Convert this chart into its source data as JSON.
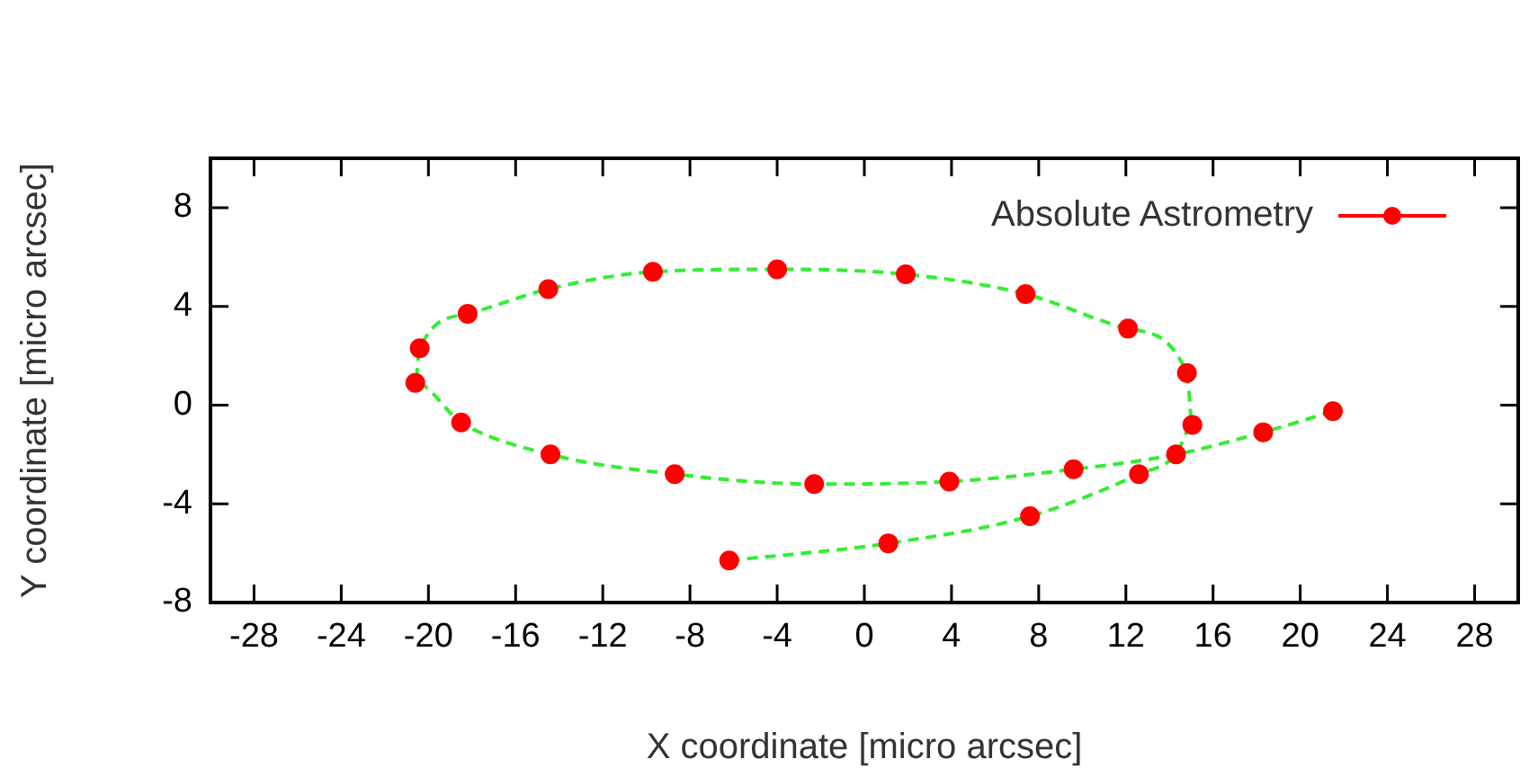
{
  "chart_data": {
    "type": "scatter",
    "xlabel": "X coordinate [micro arcsec]",
    "ylabel": "Y coordinate [micro arcsec]",
    "xlim": [
      -30,
      30
    ],
    "xticks": [
      -28,
      -24,
      -20,
      -16,
      -12,
      -8,
      -4,
      0,
      4,
      8,
      12,
      16,
      20,
      24,
      28
    ],
    "ylim": [
      -8,
      10
    ],
    "yticks": [
      -8,
      -4,
      0,
      4,
      8
    ],
    "grid": false,
    "legend": "top right",
    "series": [
      {
        "type": "line",
        "color": "#33ee33",
        "line_style": "dashed",
        "marker": "none",
        "x": [
          -6.2,
          1.1,
          7.6,
          12.6,
          14.3,
          15.05,
          14.8,
          12.1,
          7.4,
          1.9,
          -4.0,
          -9.7,
          -14.5,
          -18.2,
          -20.4,
          -20.6,
          -18.5,
          -14.4,
          -8.7,
          -2.3,
          3.9,
          9.6,
          14.3,
          18.3,
          21.5
        ],
        "values": [
          -6.3,
          -5.6,
          -4.5,
          -2.8,
          -2.0,
          -0.8,
          1.3,
          3.1,
          4.5,
          5.3,
          5.5,
          5.4,
          4.7,
          3.7,
          2.3,
          0.9,
          -0.7,
          -2.0,
          -2.8,
          -3.2,
          -3.1,
          -2.6,
          -2.0,
          -1.1,
          -0.25
        ]
      },
      {
        "type": "scatter",
        "name": "Absolute Astrometry",
        "color": "#ff0000",
        "marker": "circle",
        "x": [
          -6.2,
          1.1,
          7.6,
          12.6,
          14.3,
          15.05,
          14.8,
          12.1,
          7.4,
          1.9,
          -4.0,
          -9.7,
          -14.5,
          -18.2,
          -20.4,
          -20.6,
          -18.5,
          -14.4,
          -8.7,
          -2.3,
          3.9,
          9.6,
          18.3,
          21.5
        ],
        "values": [
          -6.3,
          -5.6,
          -4.5,
          -2.8,
          -2.0,
          -0.8,
          1.3,
          3.1,
          4.5,
          5.3,
          5.5,
          5.4,
          4.7,
          3.7,
          2.3,
          0.9,
          -0.7,
          -2.0,
          -2.8,
          -3.2,
          -3.1,
          -2.6,
          -1.1,
          -0.25
        ]
      }
    ]
  }
}
